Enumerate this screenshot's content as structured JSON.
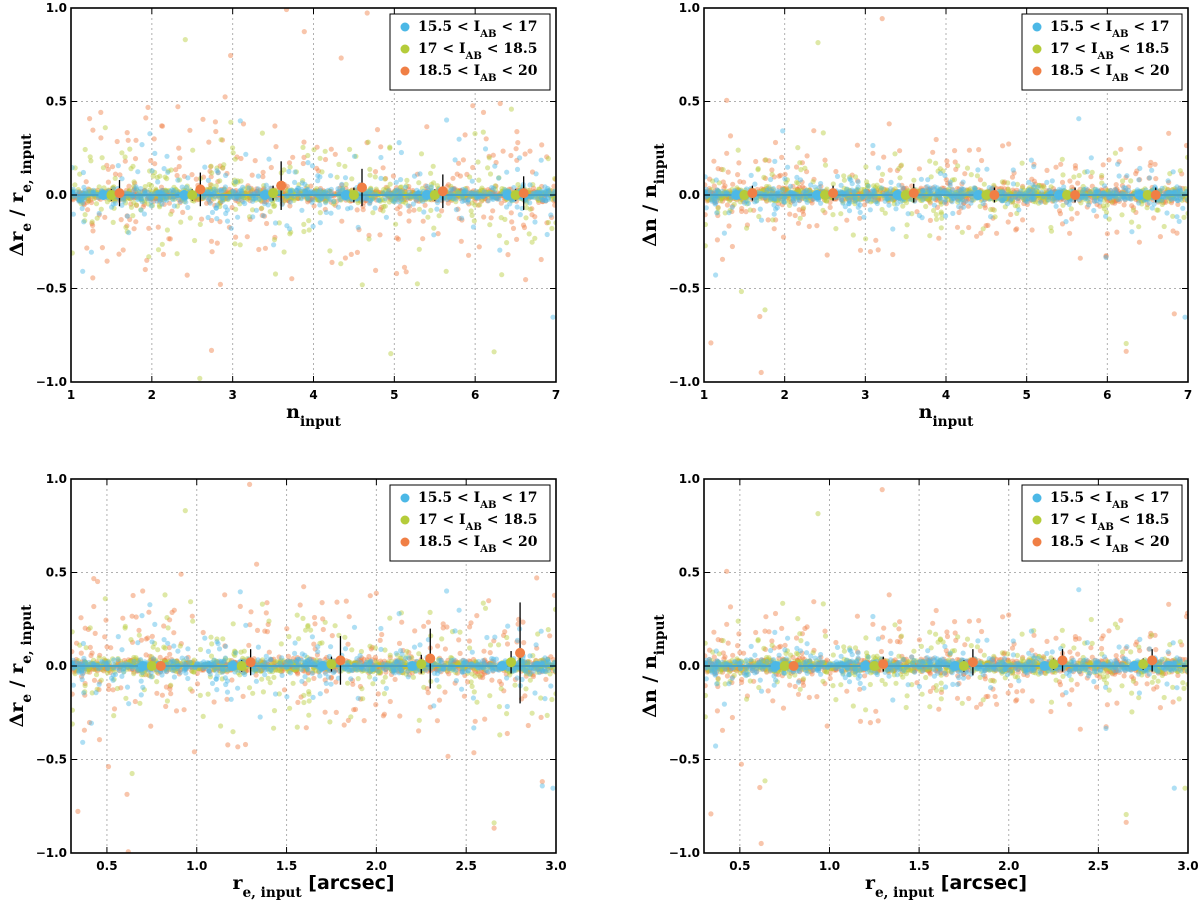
{
  "colors": {
    "bright": "#4cb8e6",
    "mid": "#b5cc3a",
    "faint": "#f07f45",
    "errorbar": "#000000",
    "zero_line": "#4ba3c3",
    "grid": "#b0b0b0"
  },
  "legend": {
    "placement": "top-right",
    "items": [
      {
        "pre": "15.5 < I",
        "sub": "AB",
        "post": " < 17"
      },
      {
        "pre": "17 < I",
        "sub": "AB",
        "post": " < 18.5"
      },
      {
        "pre": "18.5 < I",
        "sub": "AB",
        "post": " < 20"
      }
    ]
  },
  "chart_data": [
    {
      "type": "scatter",
      "xlabel": {
        "main": "n",
        "sub": "input",
        "tail": ""
      },
      "ylabel": {
        "main": "Δr",
        "sub1": "e",
        "mid": " / r",
        "sub2": "e, input"
      },
      "xlim": [
        1,
        7
      ],
      "ylim": [
        -1.0,
        1.0
      ],
      "xticks": [
        "1",
        "2",
        "3",
        "4",
        "5",
        "6",
        "7"
      ],
      "yticks": [
        "−1.0",
        "−0.5",
        "0.0",
        "0.5",
        "1.0"
      ],
      "grid": true,
      "scatter_spread": [
        0.12,
        0.15,
        0.2
      ],
      "binned_means": [
        {
          "series": 0,
          "x": [
            1.4,
            2.4,
            3.4,
            4.4,
            5.4,
            6.4
          ],
          "y": [
            0.0,
            0.0,
            0.0,
            0.0,
            0.0,
            0.0
          ],
          "err": [
            0.01,
            0.01,
            0.01,
            0.01,
            0.01,
            0.01
          ]
        },
        {
          "series": 1,
          "x": [
            1.5,
            2.5,
            3.5,
            4.5,
            5.5,
            6.5
          ],
          "y": [
            0.0,
            0.0,
            0.01,
            0.0,
            0.0,
            0.0
          ],
          "err": [
            0.03,
            0.03,
            0.04,
            0.04,
            0.03,
            0.03
          ]
        },
        {
          "series": 2,
          "x": [
            1.6,
            2.6,
            3.6,
            4.6,
            5.6,
            6.6
          ],
          "y": [
            0.01,
            0.03,
            0.05,
            0.04,
            0.02,
            0.01
          ],
          "err": [
            0.07,
            0.09,
            0.13,
            0.1,
            0.09,
            0.09
          ]
        }
      ]
    },
    {
      "type": "scatter",
      "xlabel": {
        "main": "n",
        "sub": "input",
        "tail": ""
      },
      "ylabel": {
        "main": "Δn",
        "sub1": "",
        "mid": " / n",
        "sub2": "input"
      },
      "xlim": [
        1,
        7
      ],
      "ylim": [
        -1.0,
        1.0
      ],
      "xticks": [
        "1",
        "2",
        "3",
        "4",
        "5",
        "6",
        "7"
      ],
      "yticks": [
        "−1.0",
        "−0.5",
        "0.0",
        "0.5",
        "1.0"
      ],
      "grid": true,
      "scatter_spread": [
        0.08,
        0.1,
        0.14
      ],
      "binned_means": [
        {
          "series": 0,
          "x": [
            1.4,
            2.4,
            3.4,
            4.4,
            5.4,
            6.4
          ],
          "y": [
            0.0,
            0.0,
            0.0,
            0.0,
            0.0,
            0.0
          ],
          "err": [
            0.01,
            0.01,
            0.01,
            0.01,
            0.01,
            0.01
          ]
        },
        {
          "series": 1,
          "x": [
            1.5,
            2.5,
            3.5,
            4.5,
            5.5,
            6.5
          ],
          "y": [
            0.0,
            0.0,
            0.0,
            0.0,
            0.0,
            0.0
          ],
          "err": [
            0.02,
            0.02,
            0.02,
            0.02,
            0.02,
            0.02
          ]
        },
        {
          "series": 2,
          "x": [
            1.6,
            2.6,
            3.6,
            4.6,
            5.6,
            6.6
          ],
          "y": [
            0.01,
            0.01,
            0.01,
            0.0,
            0.0,
            0.0
          ],
          "err": [
            0.04,
            0.04,
            0.05,
            0.04,
            0.04,
            0.04
          ]
        }
      ]
    },
    {
      "type": "scatter",
      "xlabel": {
        "main": "r",
        "sub": "e, input",
        "tail": " [arcsec]"
      },
      "ylabel": {
        "main": "Δr",
        "sub1": "e",
        "mid": " / r",
        "sub2": "e, input"
      },
      "xlim": [
        0.3,
        3.0
      ],
      "ylim": [
        -1.0,
        1.0
      ],
      "xticks": [
        "0.5",
        "1.0",
        "1.5",
        "2.0",
        "2.5",
        "3.0"
      ],
      "yticks": [
        "−1.0",
        "−0.5",
        "0.0",
        "0.5",
        "1.0"
      ],
      "grid": true,
      "scatter_spread": [
        0.12,
        0.15,
        0.2
      ],
      "binned_means": [
        {
          "series": 0,
          "x": [
            0.7,
            1.2,
            1.7,
            2.2,
            2.7
          ],
          "y": [
            0.0,
            0.0,
            0.0,
            0.0,
            0.0
          ],
          "err": [
            0.01,
            0.01,
            0.01,
            0.01,
            0.01
          ]
        },
        {
          "series": 1,
          "x": [
            0.75,
            1.25,
            1.75,
            2.25,
            2.75
          ],
          "y": [
            0.0,
            0.0,
            0.01,
            0.01,
            0.02
          ],
          "err": [
            0.02,
            0.03,
            0.04,
            0.05,
            0.06
          ]
        },
        {
          "series": 2,
          "x": [
            0.8,
            1.3,
            1.8,
            2.3,
            2.8
          ],
          "y": [
            0.0,
            0.02,
            0.03,
            0.04,
            0.07
          ],
          "err": [
            0.02,
            0.07,
            0.13,
            0.16,
            0.27
          ]
        }
      ]
    },
    {
      "type": "scatter",
      "xlabel": {
        "main": "r",
        "sub": "e, input",
        "tail": " [arcsec]"
      },
      "ylabel": {
        "main": "Δn",
        "sub1": "",
        "mid": " / n",
        "sub2": "input"
      },
      "xlim": [
        0.3,
        3.0
      ],
      "ylim": [
        -1.0,
        1.0
      ],
      "xticks": [
        "0.5",
        "1.0",
        "1.5",
        "2.0",
        "2.5",
        "3.0"
      ],
      "yticks": [
        "−1.0",
        "−0.5",
        "0.0",
        "0.5",
        "1.0"
      ],
      "grid": true,
      "scatter_spread": [
        0.08,
        0.1,
        0.14
      ],
      "binned_means": [
        {
          "series": 0,
          "x": [
            0.7,
            1.2,
            1.7,
            2.2,
            2.7
          ],
          "y": [
            0.0,
            0.0,
            0.0,
            0.0,
            0.0
          ],
          "err": [
            0.01,
            0.01,
            0.01,
            0.01,
            0.01
          ]
        },
        {
          "series": 1,
          "x": [
            0.75,
            1.25,
            1.75,
            2.25,
            2.75
          ],
          "y": [
            0.0,
            0.0,
            0.0,
            0.01,
            0.01
          ],
          "err": [
            0.01,
            0.02,
            0.03,
            0.03,
            0.03
          ]
        },
        {
          "series": 2,
          "x": [
            0.8,
            1.3,
            1.8,
            2.3,
            2.8
          ],
          "y": [
            0.0,
            0.01,
            0.02,
            0.03,
            0.03
          ],
          "err": [
            0.02,
            0.04,
            0.07,
            0.06,
            0.06
          ]
        }
      ]
    }
  ]
}
